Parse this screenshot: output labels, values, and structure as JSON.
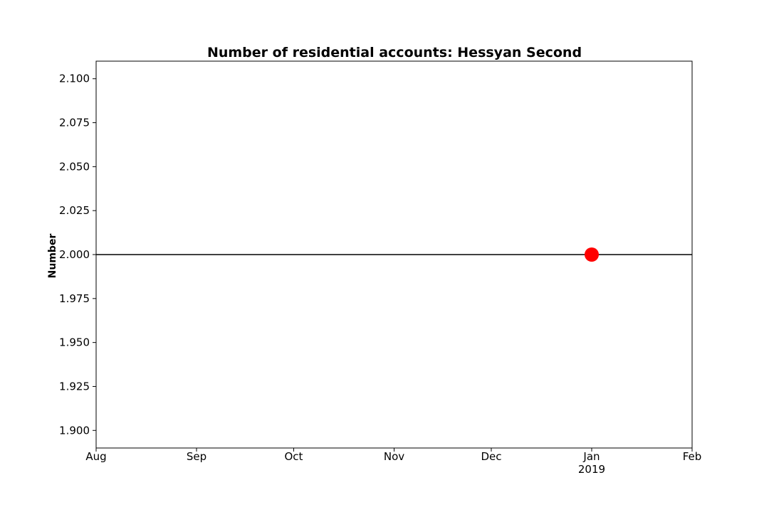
{
  "chart_data": {
    "type": "line",
    "title": "Number of residential accounts: Hessyan Second",
    "xlabel": "",
    "ylabel": "Number",
    "x_ticks": [
      {
        "date": "2018-08-01",
        "label": "Aug",
        "sublabel": ""
      },
      {
        "date": "2018-09-01",
        "label": "Sep",
        "sublabel": ""
      },
      {
        "date": "2018-10-01",
        "label": "Oct",
        "sublabel": ""
      },
      {
        "date": "2018-11-01",
        "label": "Nov",
        "sublabel": ""
      },
      {
        "date": "2018-12-01",
        "label": "Dec",
        "sublabel": ""
      },
      {
        "date": "2019-01-01",
        "label": "Jan",
        "sublabel": "2019"
      },
      {
        "date": "2019-02-01",
        "label": "Feb",
        "sublabel": ""
      }
    ],
    "y_ticks": [
      1.9,
      1.925,
      1.95,
      1.975,
      2.0,
      2.025,
      2.05,
      2.075,
      2.1
    ],
    "y_tick_labels": [
      "1.900",
      "1.925",
      "1.950",
      "1.975",
      "2.000",
      "2.025",
      "2.050",
      "2.075",
      "2.100"
    ],
    "xlim": [
      "2018-08-01",
      "2019-02-01"
    ],
    "ylim": [
      1.89,
      2.11
    ],
    "grid": false,
    "series": [
      {
        "line_value": 2.0,
        "line_color": "#000000",
        "points": [
          {
            "x": "2019-01-01",
            "y": 2.0
          }
        ],
        "marker_color": "#ff0000"
      }
    ]
  }
}
